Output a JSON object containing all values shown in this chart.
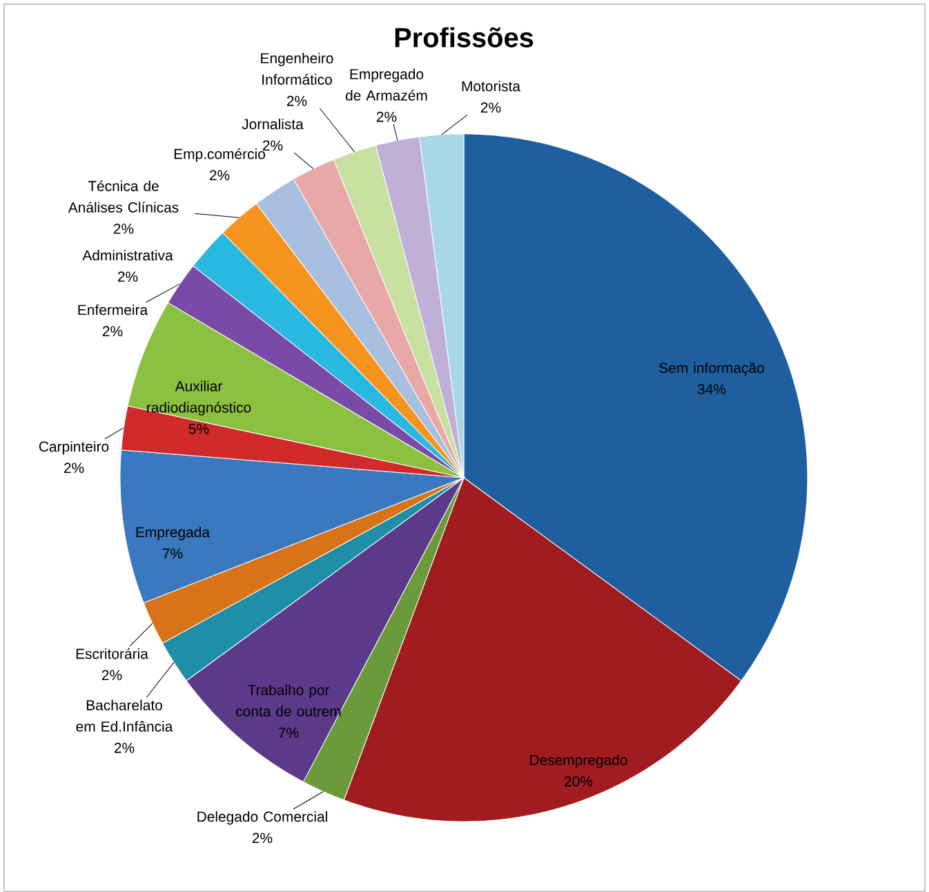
{
  "chart_data": {
    "type": "pie",
    "title": "Profissões",
    "categories": [
      "Sem informação",
      "Desempregado",
      "Delegado Comercial",
      "Trabalho por conta de outrem",
      "Bacharelato em Ed.Infância",
      "Escritorária",
      "Empregada",
      "Carpinteiro",
      "Auxiliar radiodiagnóstico",
      "Enfermeira",
      "Administrativa",
      "Técnica de Análises Clínicas",
      "Emp.comércio",
      "Jornalista",
      "Engenheiro Informático",
      "Empregado de Armazém",
      "Motorista"
    ],
    "values": [
      34,
      20,
      2,
      7,
      2,
      2,
      7,
      2,
      5,
      2,
      2,
      2,
      2,
      2,
      2,
      2,
      2
    ],
    "value_labels": [
      "34%",
      "20%",
      "2%",
      "7%",
      "2%",
      "2%",
      "7%",
      "2%",
      "5%",
      "2%",
      "2%",
      "2%",
      "2%",
      "2%",
      "2%",
      "2%",
      "2%"
    ],
    "colors": [
      "#1f5fa0",
      "#a01c20",
      "#6a9a3a",
      "#5b3a8a",
      "#1f8fa8",
      "#d9731a",
      "#3a78c0",
      "#d02a2a",
      "#8cc040",
      "#7a4aa8",
      "#28b8e0",
      "#f79420",
      "#a8bfe0",
      "#e8a8a8",
      "#c8e0a0",
      "#c0b0d8",
      "#a8d8e8"
    ]
  }
}
